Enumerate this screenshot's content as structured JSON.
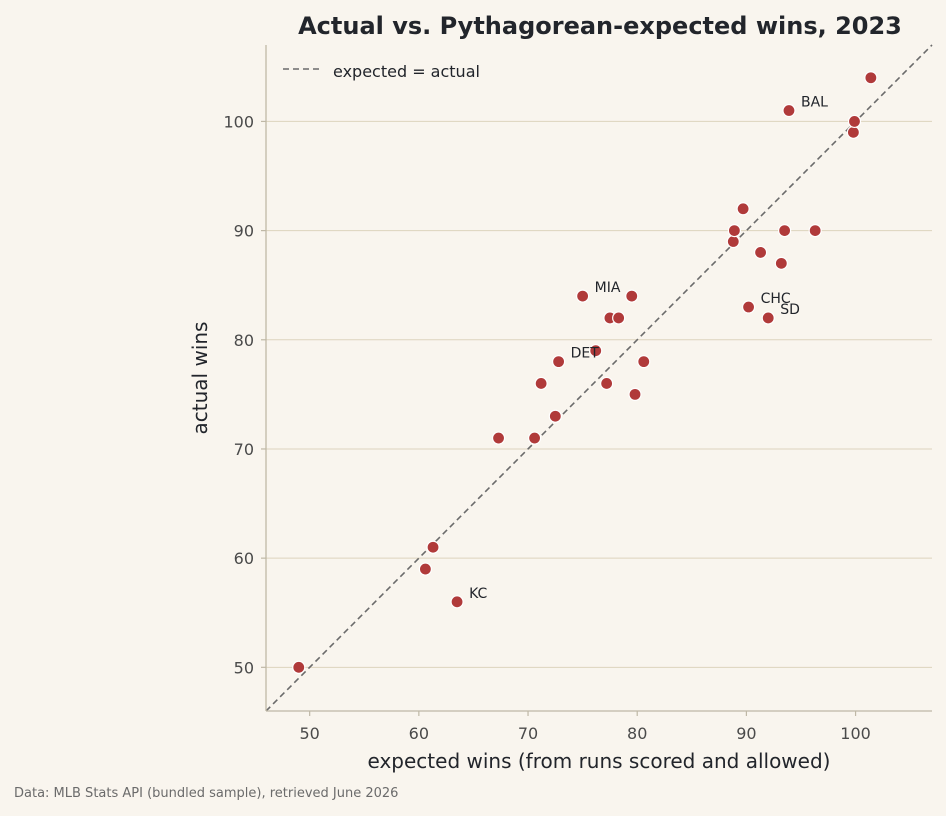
{
  "chart_data": {
    "type": "scatter",
    "title": "Actual vs. Pythagorean-expected wins, 2023",
    "xlabel": "expected wins (from runs scored and allowed)",
    "ylabel": "actual wins",
    "xlim": [
      46,
      107
    ],
    "ylim": [
      46,
      107
    ],
    "x_ticks": [
      50,
      60,
      70,
      80,
      90,
      100
    ],
    "y_ticks": [
      50,
      60,
      70,
      80,
      90,
      100
    ],
    "grid": "horizontal",
    "legend": {
      "placement": "top-left",
      "entries": [
        "expected = actual"
      ]
    },
    "reference_line": {
      "label": "expected = actual",
      "style": "dashed"
    },
    "point_color": "#b03a3a",
    "line_color": "#6b6b6b",
    "points": [
      {
        "x": 49.0,
        "y": 50
      },
      {
        "x": 60.6,
        "y": 59
      },
      {
        "x": 61.3,
        "y": 61
      },
      {
        "x": 63.5,
        "y": 56
      },
      {
        "x": 67.3,
        "y": 71
      },
      {
        "x": 70.6,
        "y": 71
      },
      {
        "x": 71.2,
        "y": 76
      },
      {
        "x": 72.5,
        "y": 73
      },
      {
        "x": 72.8,
        "y": 78
      },
      {
        "x": 75.0,
        "y": 84
      },
      {
        "x": 76.2,
        "y": 79
      },
      {
        "x": 77.2,
        "y": 76
      },
      {
        "x": 77.5,
        "y": 82
      },
      {
        "x": 78.3,
        "y": 82
      },
      {
        "x": 79.5,
        "y": 84
      },
      {
        "x": 79.8,
        "y": 75
      },
      {
        "x": 80.6,
        "y": 78
      },
      {
        "x": 88.8,
        "y": 89
      },
      {
        "x": 88.9,
        "y": 90
      },
      {
        "x": 89.7,
        "y": 92
      },
      {
        "x": 90.2,
        "y": 83
      },
      {
        "x": 91.3,
        "y": 88
      },
      {
        "x": 92.0,
        "y": 82
      },
      {
        "x": 93.2,
        "y": 87
      },
      {
        "x": 93.5,
        "y": 90
      },
      {
        "x": 93.9,
        "y": 101
      },
      {
        "x": 96.3,
        "y": 90
      },
      {
        "x": 99.8,
        "y": 99
      },
      {
        "x": 99.9,
        "y": 100
      },
      {
        "x": 101.4,
        "y": 104
      }
    ],
    "annotations": [
      {
        "label": "BAL",
        "x": 93.9,
        "y": 101
      },
      {
        "label": "MIA",
        "x": 75.0,
        "y": 84
      },
      {
        "label": "DET",
        "x": 72.8,
        "y": 78
      },
      {
        "label": "CHC",
        "x": 90.2,
        "y": 83
      },
      {
        "label": "SD",
        "x": 92.0,
        "y": 82
      },
      {
        "label": "KC",
        "x": 63.5,
        "y": 56
      }
    ]
  },
  "source_note": "Data: MLB Stats API (bundled sample), retrieved June 2026"
}
